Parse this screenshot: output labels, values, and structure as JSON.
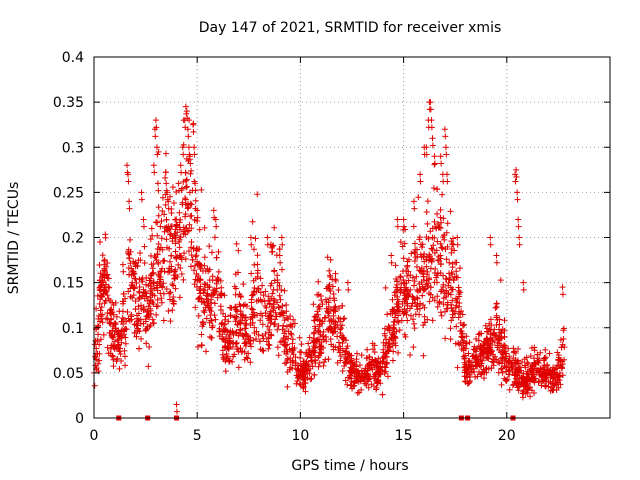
{
  "chart_data": {
    "type": "scatter",
    "title": "Day 147 of 2021, SRMTID for receiver xmis",
    "xlabel": "GPS time / hours",
    "ylabel": "SRMTID / TECUs",
    "xlim": [
      0,
      25
    ],
    "ylim": [
      0,
      0.4
    ],
    "xticks": [
      0,
      5,
      10,
      15,
      20
    ],
    "xtick_labels": [
      "0",
      "5",
      "10",
      "15",
      "20"
    ],
    "yticks": [
      0,
      0.05,
      0.1,
      0.15,
      0.2,
      0.25,
      0.3,
      0.35,
      0.4
    ],
    "ytick_labels": [
      "0",
      "0.05",
      "0.1",
      "0.15",
      "0.2",
      "0.25",
      "0.3",
      "0.35",
      "0.4"
    ],
    "grid": true,
    "marker": "plus",
    "series_color": "#e00000",
    "envelope": {
      "description": "approximate trend of the dense point cloud (hours, TECU)",
      "x": [
        0.0,
        0.3,
        0.6,
        0.9,
        1.2,
        1.5,
        1.8,
        2.1,
        2.4,
        2.7,
        3.0,
        3.3,
        3.6,
        3.9,
        4.2,
        4.5,
        4.8,
        5.1,
        5.4,
        5.7,
        6.0,
        6.3,
        6.6,
        6.9,
        7.2,
        7.5,
        7.8,
        8.1,
        8.4,
        8.7,
        9.0,
        9.3,
        9.6,
        9.9,
        10.2,
        10.5,
        10.8,
        11.1,
        11.4,
        11.7,
        12.0,
        12.3,
        12.6,
        12.9,
        13.2,
        13.5,
        13.8,
        14.1,
        14.4,
        14.7,
        15.0,
        15.3,
        15.6,
        15.9,
        16.2,
        16.5,
        16.8,
        17.1,
        17.4,
        17.7,
        18.0,
        18.3,
        18.6,
        18.9,
        19.2,
        19.5,
        19.8,
        20.1,
        20.4,
        20.7,
        21.0,
        21.3,
        21.6,
        21.9,
        22.2,
        22.5,
        22.8
      ],
      "y": [
        0.05,
        0.13,
        0.14,
        0.09,
        0.08,
        0.11,
        0.15,
        0.12,
        0.14,
        0.12,
        0.16,
        0.18,
        0.2,
        0.17,
        0.19,
        0.24,
        0.2,
        0.14,
        0.12,
        0.13,
        0.16,
        0.09,
        0.08,
        0.11,
        0.1,
        0.08,
        0.14,
        0.13,
        0.1,
        0.14,
        0.12,
        0.09,
        0.08,
        0.05,
        0.05,
        0.06,
        0.09,
        0.1,
        0.12,
        0.1,
        0.09,
        0.06,
        0.05,
        0.04,
        0.05,
        0.06,
        0.05,
        0.07,
        0.09,
        0.12,
        0.14,
        0.15,
        0.14,
        0.15,
        0.17,
        0.19,
        0.18,
        0.14,
        0.15,
        0.11,
        0.06,
        0.05,
        0.07,
        0.07,
        0.08,
        0.09,
        0.07,
        0.06,
        0.05,
        0.04,
        0.04,
        0.05,
        0.05,
        0.05,
        0.04,
        0.05,
        0.08
      ]
    },
    "spikes": [
      {
        "x": 0.2,
        "y": 0.06
      },
      {
        "x": 0.5,
        "y": 0.17
      },
      {
        "x": 1.4,
        "y": 0.17
      },
      {
        "x": 1.6,
        "y": 0.28
      },
      {
        "x": 1.65,
        "y": 0.27
      },
      {
        "x": 1.7,
        "y": 0.24
      },
      {
        "x": 2.3,
        "y": 0.25
      },
      {
        "x": 2.4,
        "y": 0.22
      },
      {
        "x": 2.8,
        "y": 0.21
      },
      {
        "x": 2.9,
        "y": 0.28
      },
      {
        "x": 2.95,
        "y": 0.32
      },
      {
        "x": 3.0,
        "y": 0.33
      },
      {
        "x": 3.05,
        "y": 0.3
      },
      {
        "x": 3.1,
        "y": 0.26
      },
      {
        "x": 3.5,
        "y": 0.26
      },
      {
        "x": 3.55,
        "y": 0.25
      },
      {
        "x": 3.6,
        "y": 0.24
      },
      {
        "x": 4.1,
        "y": 0.26
      },
      {
        "x": 4.2,
        "y": 0.28
      },
      {
        "x": 4.3,
        "y": 0.3
      },
      {
        "x": 4.4,
        "y": 0.33
      },
      {
        "x": 4.45,
        "y": 0.345
      },
      {
        "x": 4.5,
        "y": 0.34
      },
      {
        "x": 4.55,
        "y": 0.32
      },
      {
        "x": 4.6,
        "y": 0.3
      },
      {
        "x": 4.65,
        "y": 0.29
      },
      {
        "x": 4.8,
        "y": 0.325
      },
      {
        "x": 4.85,
        "y": 0.3
      },
      {
        "x": 4.9,
        "y": 0.26
      },
      {
        "x": 5.0,
        "y": 0.23
      },
      {
        "x": 5.8,
        "y": 0.23
      },
      {
        "x": 5.9,
        "y": 0.22
      },
      {
        "x": 7.6,
        "y": 0.2
      },
      {
        "x": 8.4,
        "y": 0.2
      },
      {
        "x": 9.0,
        "y": 0.18
      },
      {
        "x": 9.1,
        "y": 0.2
      },
      {
        "x": 11.7,
        "y": 0.16
      },
      {
        "x": 12.3,
        "y": 0.15
      },
      {
        "x": 14.4,
        "y": 0.18
      },
      {
        "x": 14.7,
        "y": 0.22
      },
      {
        "x": 15.0,
        "y": 0.22
      },
      {
        "x": 15.5,
        "y": 0.24
      },
      {
        "x": 15.8,
        "y": 0.27
      },
      {
        "x": 16.0,
        "y": 0.3
      },
      {
        "x": 16.1,
        "y": 0.3
      },
      {
        "x": 16.2,
        "y": 0.33
      },
      {
        "x": 16.25,
        "y": 0.35
      },
      {
        "x": 16.3,
        "y": 0.35
      },
      {
        "x": 16.35,
        "y": 0.33
      },
      {
        "x": 16.4,
        "y": 0.31
      },
      {
        "x": 16.5,
        "y": 0.29
      },
      {
        "x": 16.8,
        "y": 0.29
      },
      {
        "x": 16.9,
        "y": 0.27
      },
      {
        "x": 17.0,
        "y": 0.32
      },
      {
        "x": 17.05,
        "y": 0.3
      },
      {
        "x": 17.1,
        "y": 0.27
      },
      {
        "x": 17.6,
        "y": 0.2
      },
      {
        "x": 19.2,
        "y": 0.2
      },
      {
        "x": 19.5,
        "y": 0.18
      },
      {
        "x": 20.4,
        "y": 0.27
      },
      {
        "x": 20.45,
        "y": 0.275
      },
      {
        "x": 20.5,
        "y": 0.25
      },
      {
        "x": 20.55,
        "y": 0.22
      },
      {
        "x": 20.6,
        "y": 0.2
      },
      {
        "x": 20.8,
        "y": 0.15
      },
      {
        "x": 22.7,
        "y": 0.145
      },
      {
        "x": 4.0,
        "y": 0.015
      }
    ],
    "zero_markers": [
      1.2,
      2.6,
      4.0,
      17.8,
      18.1,
      20.3
    ],
    "point_count": 2600
  }
}
